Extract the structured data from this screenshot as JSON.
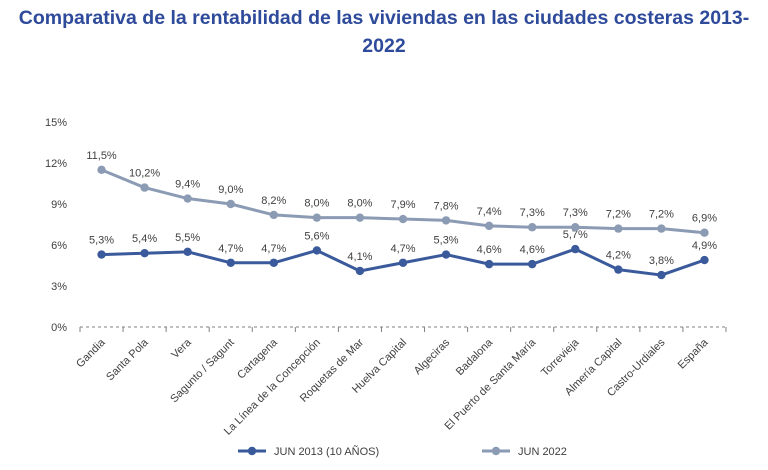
{
  "chart_data": {
    "type": "line",
    "title_line1": "Comparativa de la rentabilidad de las viviendas en las ciudades costeras 2013-",
    "title_line2": "2022",
    "xlabel": "",
    "ylabel": "",
    "ylim": [
      0,
      15
    ],
    "yticks": [
      "0%",
      "3%",
      "6%",
      "9%",
      "12%",
      "15%"
    ],
    "ytick_values": [
      0,
      3,
      6,
      9,
      12,
      15
    ],
    "grid": false,
    "legend_position": "bottom",
    "categories": [
      "Gandia",
      "Santa Pola",
      "Vera",
      "Sagunto / Sagunt",
      "Cartagena",
      "La Línea de la Concepción",
      "Roquetas de Mar",
      "Huelva Capital",
      "Algeciras",
      "Badalona",
      "El Puerto de Santa María",
      "Torrevieja",
      "Almería Capital",
      "Castro-Urdiales",
      "España"
    ],
    "series": [
      {
        "name": "JUN 2013  (10 AÑOS)",
        "color": "#3a5a9c",
        "values": [
          5.3,
          5.4,
          5.5,
          4.7,
          4.7,
          5.6,
          4.1,
          4.7,
          5.3,
          4.6,
          4.6,
          5.7,
          4.2,
          3.8,
          4.9
        ],
        "labels": [
          "5,3%",
          "5,4%",
          "5,5%",
          "4,7%",
          "4,7%",
          "5,6%",
          "4,1%",
          "4,7%",
          "5,3%",
          "4,6%",
          "4,6%",
          "5,7%",
          "4,2%",
          "3,8%",
          "4,9%"
        ]
      },
      {
        "name": "JUN 2022",
        "color": "#8c9bb4",
        "values": [
          11.5,
          10.2,
          9.4,
          9.0,
          8.2,
          8.0,
          8.0,
          7.9,
          7.8,
          7.4,
          7.3,
          7.3,
          7.2,
          7.2,
          6.9
        ],
        "labels": [
          "11,5%",
          "10,2%",
          "9,4%",
          "9,0%",
          "8,2%",
          "8,0%",
          "8,0%",
          "7,9%",
          "7,8%",
          "7,4%",
          "7,3%",
          "7,3%",
          "7,2%",
          "7,2%",
          "6,9%"
        ]
      }
    ]
  }
}
